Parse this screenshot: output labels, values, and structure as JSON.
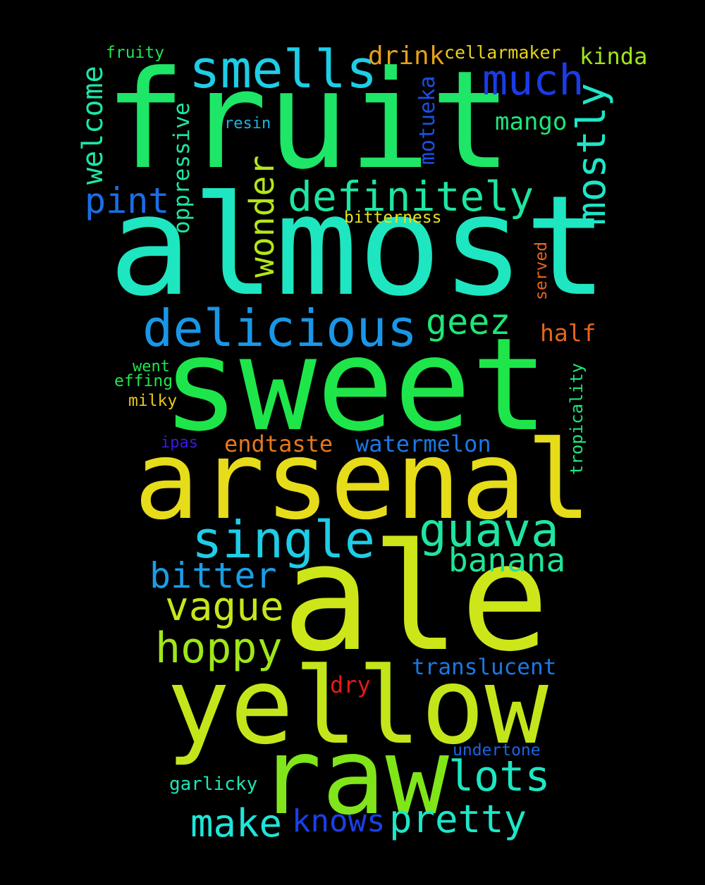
{
  "words": {
    "fruit": {
      "text": "fruit",
      "color": "#1ee667"
    },
    "almost": {
      "text": "almost",
      "color": "#1ee6c0"
    },
    "sweet": {
      "text": "sweet",
      "color": "#1ee64a"
    },
    "arsenal": {
      "text": "arsenal",
      "color": "#e6dc1a"
    },
    "ale": {
      "text": "ale",
      "color": "#cde61a"
    },
    "yellow": {
      "text": "yellow",
      "color": "#c3e61a"
    },
    "raw": {
      "text": "raw",
      "color": "#80e61a"
    },
    "smells": {
      "text": "smells",
      "color": "#1ecde6"
    },
    "delicious": {
      "text": "delicious",
      "color": "#1a96e6"
    },
    "definitely": {
      "text": "definitely",
      "color": "#1ee6a0"
    },
    "single": {
      "text": "single",
      "color": "#1ecde6"
    },
    "guava": {
      "text": "guava",
      "color": "#1ee6a0"
    },
    "much": {
      "text": "much",
      "color": "#1a3ce6"
    },
    "mostly": {
      "text": "mostly",
      "color": "#1ee6c8"
    },
    "wonder": {
      "text": "wonder",
      "color": "#b4e61a"
    },
    "pint": {
      "text": "pint",
      "color": "#1a6ee6"
    },
    "welcome": {
      "text": "welcome",
      "color": "#1ee6a8"
    },
    "geez": {
      "text": "geez",
      "color": "#1ee678"
    },
    "banana": {
      "text": "banana",
      "color": "#1ee696"
    },
    "bitter": {
      "text": "bitter",
      "color": "#1a9ee6"
    },
    "vague": {
      "text": "vague",
      "color": "#c8e61a"
    },
    "hoppy": {
      "text": "hoppy",
      "color": "#a0e61a"
    },
    "lots": {
      "text": "lots",
      "color": "#1ee6c0"
    },
    "pretty": {
      "text": "pretty",
      "color": "#1ee6c8"
    },
    "make": {
      "text": "make",
      "color": "#1ee6d8"
    },
    "knows": {
      "text": "knows",
      "color": "#1a40e6"
    },
    "drink": {
      "text": "drink",
      "color": "#e6a01a"
    },
    "cellarmaker": {
      "text": "cellarmaker",
      "color": "#e6d21a"
    },
    "kinda": {
      "text": "kinda",
      "color": "#a0e61a"
    },
    "mango": {
      "text": "mango",
      "color": "#1ee67a"
    },
    "half": {
      "text": "half",
      "color": "#e6641e"
    },
    "oppressive": {
      "text": "oppressive",
      "color": "#1ee6a0"
    },
    "motueka": {
      "text": "motueka",
      "color": "#1a50e6"
    },
    "fruity": {
      "text": "fruity",
      "color": "#1ee650"
    },
    "resin": {
      "text": "resin",
      "color": "#1ab4e6"
    },
    "bitterness": {
      "text": "bitterness",
      "color": "#e6e61a"
    },
    "served": {
      "text": "served",
      "color": "#e6641e"
    },
    "tropicality": {
      "text": "tropicality",
      "color": "#1ee67c"
    },
    "went": {
      "text": "went",
      "color": "#1ee650"
    },
    "effing": {
      "text": "effing",
      "color": "#1ee650"
    },
    "milky": {
      "text": "milky",
      "color": "#e6c81a"
    },
    "ipas": {
      "text": "ipas",
      "color": "#3c1ae6"
    },
    "endtaste": {
      "text": "endtaste",
      "color": "#e6781e"
    },
    "watermelon": {
      "text": "watermelon",
      "color": "#1a78e6"
    },
    "translucent": {
      "text": "translucent",
      "color": "#1a78e6"
    },
    "dry": {
      "text": "dry",
      "color": "#e61a1a"
    },
    "undertone": {
      "text": "undertone",
      "color": "#1a64e6"
    },
    "garlicky": {
      "text": "garlicky",
      "color": "#1ee6b4"
    }
  }
}
